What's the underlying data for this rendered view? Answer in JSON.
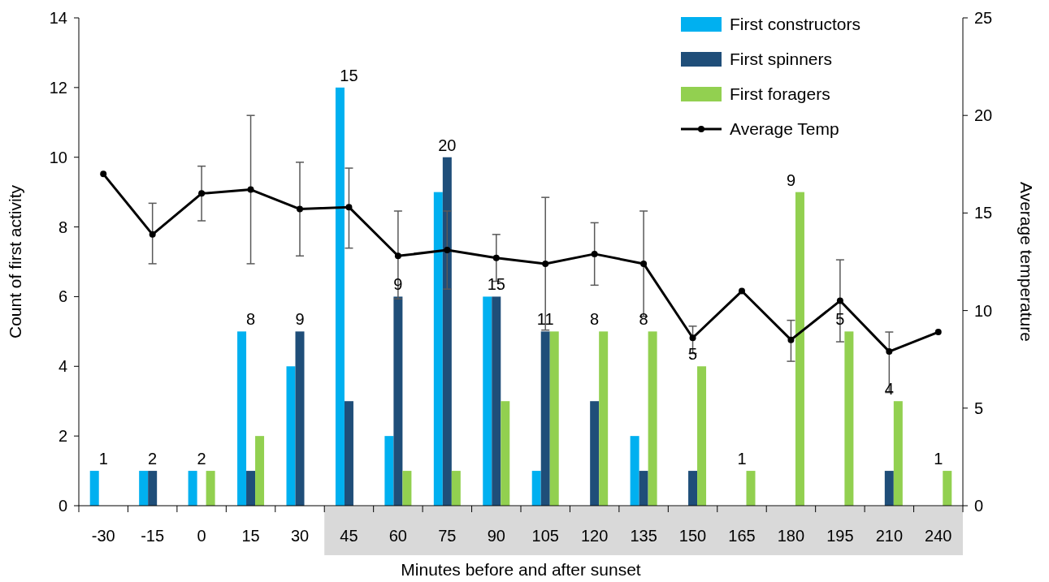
{
  "chart_data": {
    "type": "bar",
    "xlabel": "Minutes before and after sunset",
    "ylabel": "Count of first activity",
    "y2label": "Average temperature",
    "categories": [
      "-30",
      "-15",
      "0",
      "15",
      "30",
      "45",
      "60",
      "75",
      "90",
      "105",
      "120",
      "135",
      "150",
      "165",
      "180",
      "195",
      "210",
      "240"
    ],
    "series": [
      {
        "name": "First constructors",
        "color": "#00b0f0",
        "values": [
          1,
          1,
          1,
          5,
          4,
          12,
          2,
          9,
          6,
          1,
          0,
          2,
          0,
          0,
          0,
          0,
          0,
          0
        ]
      },
      {
        "name": "First spinners",
        "color": "#1f4e79",
        "values": [
          0,
          1,
          0,
          1,
          5,
          3,
          6,
          10,
          6,
          5,
          3,
          1,
          1,
          0,
          0,
          0,
          1,
          0
        ]
      },
      {
        "name": "First foragers",
        "color": "#92d050",
        "values": [
          0,
          0,
          1,
          2,
          0,
          0,
          1,
          1,
          3,
          5,
          5,
          5,
          4,
          1,
          9,
          5,
          3,
          1
        ]
      },
      {
        "name": "Average Temp",
        "type": "line",
        "axis": "y2",
        "color": "#000000",
        "marker": "circle",
        "values": [
          17.0,
          13.9,
          16.0,
          16.2,
          15.2,
          15.3,
          12.8,
          13.1,
          12.7,
          12.4,
          12.9,
          12.4,
          8.6,
          11.0,
          8.5,
          10.5,
          7.9,
          8.9
        ],
        "errors": [
          null,
          [
            12.4,
            15.5
          ],
          [
            14.6,
            17.4
          ],
          [
            12.4,
            20.0
          ],
          [
            12.8,
            17.6
          ],
          [
            13.2,
            17.3
          ],
          [
            10.6,
            15.1
          ],
          [
            11.1,
            15.1
          ],
          [
            11.5,
            13.9
          ],
          [
            9.0,
            15.8
          ],
          [
            11.3,
            14.5
          ],
          [
            9.7,
            15.1
          ],
          [
            7.8,
            9.2
          ],
          null,
          [
            7.4,
            9.5
          ],
          [
            8.4,
            12.6
          ],
          [
            5.8,
            8.9
          ],
          null
        ]
      }
    ],
    "totals": [
      "1",
      "2",
      "2",
      "8",
      "9",
      "15",
      "9",
      "20",
      "15",
      "11",
      "8",
      "8",
      "5",
      "1",
      "9",
      "5",
      "4",
      "1"
    ],
    "ylim": [
      0,
      14
    ],
    "yticks": [
      0,
      2,
      4,
      6,
      8,
      10,
      12,
      14
    ],
    "y2lim": [
      0,
      25
    ],
    "y2ticks": [
      0,
      5,
      10,
      15,
      20,
      25
    ],
    "legend": "top right",
    "grid": false
  }
}
